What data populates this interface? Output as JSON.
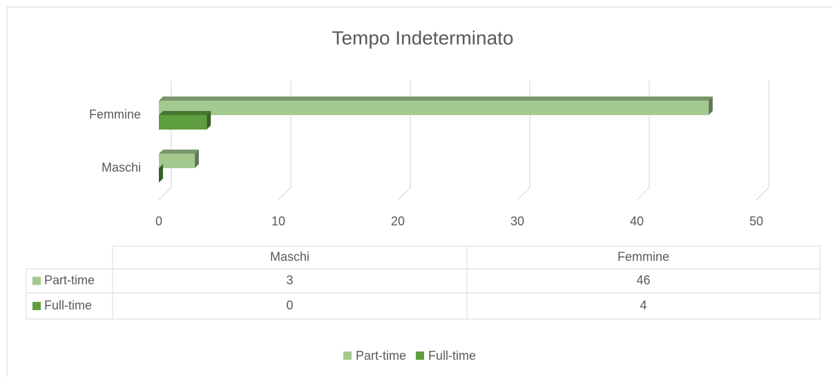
{
  "chart_data": {
    "type": "bar",
    "orientation": "horizontal",
    "title": "Tempo Indeterminato",
    "categories": [
      "Maschi",
      "Femmine"
    ],
    "series": [
      {
        "name": "Part-time",
        "color": "#a3c98f",
        "values": [
          3,
          46
        ]
      },
      {
        "name": "Full-time",
        "color": "#5f9e3e",
        "values": [
          0,
          4
        ]
      }
    ],
    "xlim": [
      0,
      50
    ],
    "xticks": [
      0,
      10,
      20,
      30,
      40,
      50
    ],
    "grid": true,
    "legend": "bottom",
    "data_table": true
  }
}
